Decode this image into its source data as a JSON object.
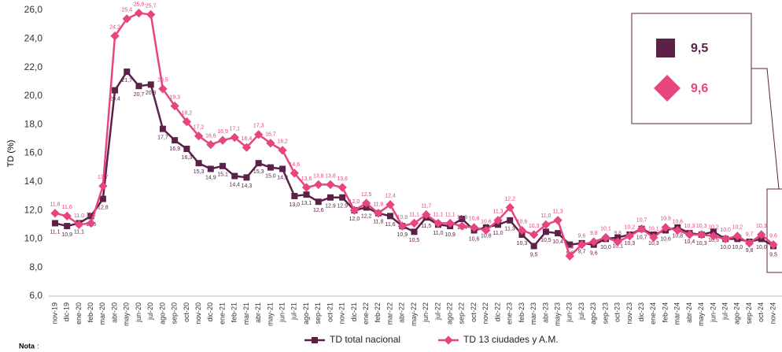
{
  "chart_data": {
    "type": "line",
    "y_label": "TD (%)",
    "categories": [
      "nov-19",
      "dic-19",
      "ene-20",
      "feb-20",
      "mar-20",
      "abr-20",
      "may-20",
      "jun-20",
      "jul-20",
      "ago-20",
      "sep-20",
      "oct-20",
      "nov-20",
      "dic-20",
      "ene-21",
      "feb-21",
      "mar-21",
      "abr-21",
      "may-21",
      "jun-21",
      "jul-21",
      "ago-21",
      "sep-21",
      "oct-21",
      "nov-21",
      "dic-21",
      "ene-22",
      "feb-22",
      "mar-22",
      "abr-22",
      "may-22",
      "jun-22",
      "jul-22",
      "ago-22",
      "sep-22",
      "oct-22",
      "nov-22",
      "dic-22",
      "ene-23",
      "feb-23",
      "mar-23",
      "abr-23",
      "may-23",
      "jun-23",
      "jul-23",
      "ago-23",
      "sep-23",
      "oct-23",
      "nov-23",
      "dic-23",
      "ene-24",
      "feb-24",
      "mar-24",
      "abr-24",
      "may-24",
      "jun-24",
      "jul-24",
      "ago-24",
      "sep-24",
      "oct-24",
      "nov-24"
    ],
    "series": [
      {
        "name": "TD total nacional",
        "color": "#5b2148",
        "marker": "square",
        "values": [
          11.1,
          10.9,
          11.1,
          11.6,
          12.8,
          20.4,
          21.7,
          20.7,
          20.8,
          17.7,
          16.9,
          16.3,
          15.3,
          14.9,
          15.1,
          14.4,
          14.3,
          15.3,
          15.0,
          14.9,
          13.0,
          13.1,
          12.6,
          12.9,
          12.9,
          12.0,
          12.2,
          11.8,
          11.6,
          10.9,
          10.5,
          11.5,
          11.0,
          10.9,
          11.4,
          10.6,
          10.8,
          11.0,
          11.3,
          10.3,
          9.5,
          10.5,
          10.4,
          9.6,
          9.7,
          9.6,
          10.0,
          10.1,
          10.3,
          10.7,
          10.3,
          10.6,
          10.8,
          10.4,
          10.3,
          10.5,
          10.0,
          10.0,
          9.8,
          10.0,
          9.5
        ],
        "value_labels": [
          "11,1",
          "10,9",
          "11,1",
          "11,6",
          "12,8",
          "20,4",
          "21,7",
          "20,7",
          "20,8",
          "17,7",
          "16,9",
          "16,3",
          "15,3",
          "14,9",
          "15,1",
          "14,4",
          "14,3",
          "15,3",
          "15,0",
          "14,9",
          "13,0",
          "13,1",
          "12,6",
          "12,9",
          "12,9",
          "12,0",
          "12,2",
          "11,8",
          "11,6",
          "10,9",
          "10,5",
          "11,5",
          "11,0",
          "10,9",
          "11,4",
          "10,6",
          "10,8",
          "11,0",
          "11,3",
          "10,3",
          "9,5",
          "10,5",
          "10,4",
          "9,6",
          "9,7",
          "9,6",
          "10,0",
          "10,1",
          "10,3",
          "10,7",
          "10,3",
          "10,6",
          "10,8",
          "10,4",
          "10,3",
          "10,5",
          "10,0",
          "10,0",
          "9,8",
          "10,0",
          "9,5"
        ]
      },
      {
        "name": "TD 13 ciudades y A.M.",
        "color": "#e6457f",
        "marker": "diamond",
        "values": [
          11.8,
          11.6,
          11.0,
          11.1,
          13.7,
          24.2,
          25.4,
          25.8,
          25.7,
          20.5,
          19.3,
          18.2,
          17.2,
          16.6,
          16.9,
          17.1,
          16.4,
          17.3,
          16.7,
          16.2,
          14.6,
          13.6,
          13.8,
          13.8,
          13.6,
          12.0,
          12.5,
          11.8,
          12.4,
          10.9,
          11.1,
          11.7,
          11.1,
          11.1,
          10.9,
          10.8,
          10.6,
          11.3,
          12.2,
          10.6,
          10.3,
          11.0,
          11.3,
          8.8,
          9.6,
          9.8,
          10.1,
          9.8,
          10.2,
          10.7,
          10.1,
          10.8,
          10.6,
          10.3,
          10.3,
          10.2,
          10.0,
          10.2,
          9.7,
          10.3,
          9.6
        ],
        "value_labels": [
          "11,8",
          "11,6",
          "11,0",
          "11,1",
          "13,7",
          "24,2",
          "25,4",
          "25,8",
          "25,7",
          "20,5",
          "19,3",
          "18,2",
          "17,2",
          "16,6",
          "16,9",
          "17,1",
          "16,4",
          "17,3",
          "16,7",
          "16,2",
          "14,6",
          "13,6",
          "13,8",
          "13,8",
          "13,6",
          "12,0",
          "12,5",
          "11,8",
          "12,4",
          "10,9",
          "11,1",
          "11,7",
          "11,1",
          "11,1",
          "10,9",
          "10,8",
          "10,6",
          "11,3",
          "12,2",
          "10,6",
          "10,3",
          "11,0",
          "11,3",
          "8,8",
          "9,6",
          "9,8",
          "10,1",
          "9,8",
          "10,2",
          "10,7",
          "10,1",
          "10,8",
          "10,6",
          "10,3",
          "10,3",
          "10,2",
          "10,0",
          "10,2",
          "9,7",
          "10,3",
          "9,6"
        ]
      }
    ],
    "ylim": [
      6,
      26
    ],
    "yticks": [
      {
        "value": 6,
        "label": "6,0"
      },
      {
        "value": 8,
        "label": "8,0"
      },
      {
        "value": 10,
        "label": "10,0"
      },
      {
        "value": 12,
        "label": "12,0"
      },
      {
        "value": 14,
        "label": "14,0"
      },
      {
        "value": 16,
        "label": "16,0"
      },
      {
        "value": 18,
        "label": "18,0"
      },
      {
        "value": 20,
        "label": "20,0"
      },
      {
        "value": 22,
        "label": "22,0"
      },
      {
        "value": 24,
        "label": "24,0"
      },
      {
        "value": 26,
        "label": "26,0"
      }
    ],
    "grid": false,
    "legend": "bottom",
    "callout": [
      "9,5",
      "9,6"
    ],
    "note": "Nota"
  }
}
